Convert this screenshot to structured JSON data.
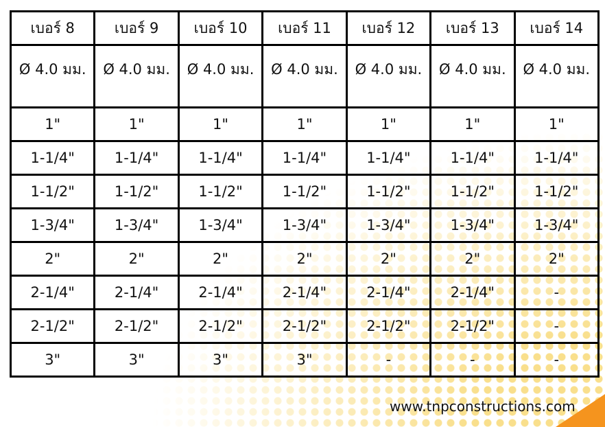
{
  "table": {
    "headers": [
      "เบอร์ 8",
      "เบอร์ 9",
      "เบอร์ 10",
      "เบอร์ 11",
      "เบอร์ 12",
      "เบอร์ 13",
      "เบอร์ 14"
    ],
    "diameters": [
      "Ø 4.0 มม.",
      "Ø 4.0 มม.",
      "Ø 4.0 มม.",
      "Ø 4.0 มม.",
      "Ø 4.0 มม.",
      "Ø 4.0 มม.",
      "Ø 4.0 มม."
    ],
    "rows": [
      [
        "1\"",
        "1\"",
        "1\"",
        "1\"",
        "1\"",
        "1\"",
        "1\""
      ],
      [
        "1-1/4\"",
        "1-1/4\"",
        "1-1/4\"",
        "1-1/4\"",
        "1-1/4\"",
        "1-1/4\"",
        "1-1/4\""
      ],
      [
        "1-1/2\"",
        "1-1/2\"",
        "1-1/2\"",
        "1-1/2\"",
        "1-1/2\"",
        "1-1/2\"",
        "1-1/2\""
      ],
      [
        "1-3/4\"",
        "1-3/4\"",
        "1-3/4\"",
        "1-3/4\"",
        "1-3/4\"",
        "1-3/4\"",
        "1-3/4\""
      ],
      [
        "2\"",
        "2\"",
        "2\"",
        "2\"",
        "2\"",
        "2\"",
        "2\""
      ],
      [
        "2-1/4\"",
        "2-1/4\"",
        "2-1/4\"",
        "2-1/4\"",
        "2-1/4\"",
        "2-1/4\"",
        "-"
      ],
      [
        "2-1/2\"",
        "2-1/2\"",
        "2-1/2\"",
        "2-1/2\"",
        "2-1/2\"",
        "2-1/2\"",
        "-"
      ],
      [
        "3\"",
        "3\"",
        "3\"",
        "3\"",
        "-",
        "-",
        "-"
      ]
    ]
  },
  "footer": {
    "website": "www.tnpconstructions.com"
  },
  "colors": {
    "dots": "#f9df8c",
    "corner": "#f5941e"
  }
}
